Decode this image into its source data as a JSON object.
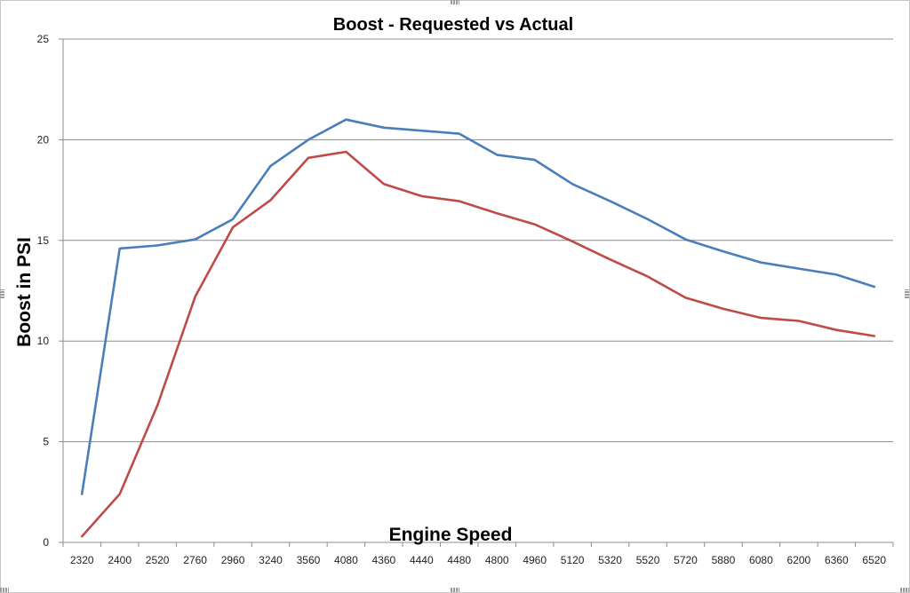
{
  "chart_data": {
    "type": "line",
    "title": "Boost - Requested vs Actual",
    "xlabel": "Engine Speed",
    "ylabel": "Boost in PSI",
    "categories": [
      "2320",
      "2400",
      "2520",
      "2760",
      "2960",
      "3240",
      "3560",
      "4080",
      "4360",
      "4440",
      "4480",
      "4800",
      "4960",
      "5120",
      "5320",
      "5520",
      "5720",
      "5880",
      "6080",
      "6200",
      "6360",
      "6520"
    ],
    "ylim": [
      0,
      25
    ],
    "yticks": [
      0,
      5,
      10,
      15,
      20,
      25
    ],
    "grid": true,
    "legend": "none",
    "series": [
      {
        "name": "Requested",
        "color": "#4a7ebb",
        "values": [
          2.4,
          14.6,
          14.75,
          15.05,
          16.05,
          18.7,
          20.0,
          21.0,
          20.6,
          20.45,
          20.3,
          19.25,
          19.0,
          17.8,
          16.95,
          16.05,
          15.05,
          14.45,
          13.9,
          13.6,
          13.3,
          12.7
        ]
      },
      {
        "name": "Actual",
        "color": "#be4b48",
        "values": [
          0.3,
          2.4,
          6.8,
          12.2,
          15.65,
          17.0,
          19.1,
          19.4,
          17.8,
          17.2,
          16.95,
          16.35,
          15.8,
          14.95,
          14.05,
          13.2,
          12.15,
          11.6,
          11.15,
          11.0,
          10.55,
          10.25
        ]
      }
    ]
  }
}
